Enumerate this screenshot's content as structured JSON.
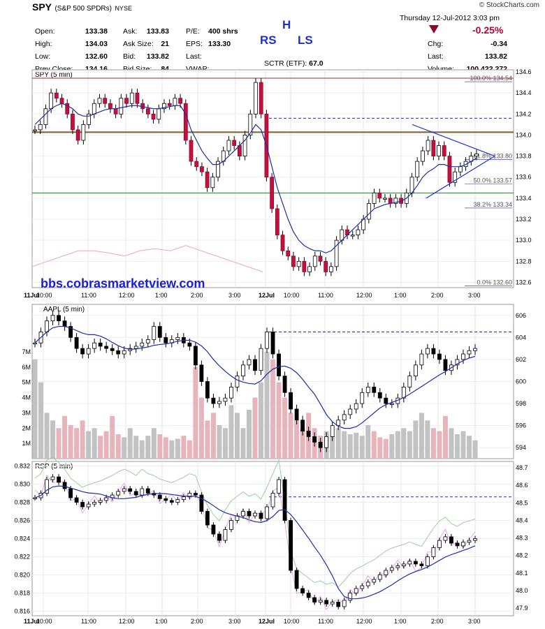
{
  "header": {
    "symbol": "SPY",
    "name": "(S&P 500 SPDRs)",
    "exchange": "NYSE",
    "credit": "© StockCharts.com",
    "date_line": "Thursday  12-Jul-2012  3:03 pm",
    "change_pct": "-0.25%",
    "quote_left": [
      {
        "label": "Open:",
        "value": "133.38"
      },
      {
        "label": "High:",
        "value": "134.03"
      },
      {
        "label": "Low:",
        "value": "132.60"
      },
      {
        "label": "Prev Close:",
        "value": "134.16"
      }
    ],
    "quote_mid": [
      {
        "label": "Ask:",
        "value": "133.83"
      },
      {
        "label": "Ask Size:",
        "value": "21"
      },
      {
        "label": "Bid:",
        "value": "133.82"
      },
      {
        "label": "Bid Size:",
        "value": "84"
      }
    ],
    "quote_misc": [
      {
        "label": "P/E:",
        "value": ""
      },
      {
        "label": "EPS:",
        "value": ""
      },
      {
        "label": "Last:",
        "value": "400 shrs"
      },
      {
        "label": "VWAP:",
        "value": "133.30"
      }
    ],
    "sctr": "SCTR (ETF):",
    "sctr_value": "67.0",
    "quote_right": [
      {
        "label": "Chg:",
        "value": "-0.34"
      },
      {
        "label": "Last:",
        "value": "133.82"
      },
      {
        "label": "Volume:",
        "value": "100,422,272"
      }
    ],
    "annotation_h": "H",
    "annotation_rs": "RS",
    "annotation_ls": "LS"
  },
  "watermark": "bbs.cobrasmarketview.com",
  "chart_data": [
    {
      "type": "line",
      "panel": "SPY (5 min)",
      "ylim": [
        132.6,
        134.6
      ],
      "yticks": [
        "134.6",
        "134.4",
        "134.2",
        "134.0",
        "133.8",
        "133.6",
        "133.4",
        "133.2",
        "133.0",
        "132.8",
        "132.6"
      ],
      "xticks": [
        "11Jul",
        "10:00",
        "11:00",
        "12:00",
        "1:00",
        "2:00",
        "3:00",
        "12Jul",
        "10:00",
        "11:00",
        "12:00",
        "1:00",
        "2:00",
        "3:00"
      ],
      "fib_labels": [
        "100.0%",
        "134.54",
        "61.8%",
        "133.80",
        "50.0%",
        "133.57",
        "38.2%",
        "133.34",
        "0.0%",
        "132.60"
      ],
      "fib_levels": [
        134.54,
        133.8,
        133.57,
        133.34,
        132.6
      ],
      "red_lines": [
        134.54,
        134.03
      ],
      "green_lines": [
        134.03,
        133.45
      ],
      "dashed_blue": 134.16,
      "series": [
        {
          "name": "",
          "values": [
            134.05,
            134.1,
            134.25,
            134.4,
            134.35,
            134.3,
            134.2,
            134.05,
            133.95,
            134.1,
            134.2,
            134.3,
            134.35,
            134.3,
            134.25,
            134.2,
            134.35,
            134.3,
            134.4,
            134.3,
            134.25,
            134.2,
            134.15,
            134.25,
            134.3,
            134.28,
            134.35,
            134.3,
            133.95,
            133.75,
            133.7,
            133.65,
            133.5,
            133.6,
            133.75,
            133.85,
            133.95,
            133.9,
            133.8,
            134.0,
            134.2,
            134.5,
            134.2,
            133.6,
            133.3,
            133.05,
            132.9,
            132.85,
            132.75,
            132.8,
            132.7,
            132.75,
            132.85,
            132.8,
            132.7,
            132.75,
            133.0,
            133.1,
            133.05,
            133.05,
            133.1,
            133.2,
            133.35,
            133.45,
            133.4,
            133.4,
            133.35,
            133.4,
            133.35,
            133.45,
            133.6,
            133.75,
            133.85,
            133.95,
            133.8,
            133.9,
            133.8,
            133.55,
            133.65,
            133.7,
            133.75,
            133.8,
            133.82
          ]
        },
        {
          "name": "",
          "values": [
            134.1,
            134.15,
            134.2,
            134.25,
            134.28,
            134.3,
            134.28,
            134.25,
            134.2,
            134.18,
            134.18,
            134.2,
            134.22,
            134.24,
            134.25,
            134.25,
            134.26,
            134.27,
            134.28,
            134.28,
            134.27,
            134.26,
            134.25,
            134.25,
            134.26,
            134.27,
            134.28,
            134.28,
            134.2,
            134.05,
            133.95,
            133.85,
            133.78,
            133.72,
            133.72,
            133.75,
            133.8,
            133.85,
            133.9,
            133.95,
            134.02,
            134.1,
            134.05,
            133.9,
            133.7,
            133.5,
            133.35,
            133.2,
            133.08,
            133.0,
            132.95,
            132.92,
            132.9,
            132.9,
            132.88,
            132.9,
            132.95,
            133.0,
            133.05,
            133.1,
            133.15,
            133.2,
            133.25,
            133.3,
            133.32,
            133.34,
            133.35,
            133.36,
            133.37,
            133.4,
            133.45,
            133.52,
            133.6,
            133.65,
            133.68,
            133.72,
            133.72,
            133.7,
            133.7,
            133.7,
            133.72,
            133.75,
            133.78
          ]
        }
      ]
    },
    {
      "type": "line",
      "panel": "AAPL (5 min)",
      "ylim": [
        593,
        607
      ],
      "yticks": [
        "606",
        "604",
        "602",
        "600",
        "598",
        "596",
        "594"
      ],
      "volume_ticks": [
        "7M",
        "6M",
        "5M",
        "4M",
        "3M",
        "2M",
        "1M"
      ],
      "dashed_blue": 604.5,
      "series": [
        {
          "name": "",
          "values": [
            603.5,
            604.5,
            605.5,
            606.0,
            605.5,
            605.0,
            604.0,
            603.0,
            602.5,
            603.0,
            603.5,
            603.2,
            603.0,
            602.8,
            602.5,
            602.8,
            603.0,
            603.2,
            603.5,
            603.8,
            605.0,
            604.0,
            603.5,
            603.8,
            604.0,
            603.5,
            603.2,
            601.5,
            600.0,
            598.5,
            598.0,
            598.2,
            598.5,
            599.5,
            600.5,
            601.5,
            602.0,
            601.0,
            603.0,
            604.5,
            602.5,
            600.5,
            599.0,
            597.5,
            596.5,
            595.5,
            595.0,
            594.5,
            594.0,
            595.0,
            596.0,
            596.5,
            597.0,
            597.5,
            598.0,
            599.0,
            599.5,
            599.0,
            598.5,
            598.0,
            598.0,
            598.5,
            599.5,
            600.5,
            601.5,
            602.5,
            603.0,
            602.5,
            602.0,
            601.0,
            601.5,
            602.0,
            602.5,
            602.8,
            603.0
          ]
        }
      ],
      "volume": [
        6.5,
        5.0,
        3.0,
        2.5,
        2.0,
        2.8,
        2.2,
        2.0,
        2.5,
        1.8,
        2.0,
        1.5,
        1.8,
        2.8,
        1.6,
        1.4,
        2.0,
        1.5,
        1.2,
        1.5,
        2.0,
        1.6,
        1.4,
        1.2,
        1.3,
        1.5,
        1.2,
        6.0,
        4.0,
        2.5,
        3.0,
        2.2,
        2.0,
        3.5,
        3.0,
        2.0,
        3.2,
        4.0,
        5.0,
        7.0,
        6.5,
        5.0,
        4.0,
        3.0,
        2.5,
        2.0,
        3.0,
        2.0,
        1.5,
        1.8,
        1.5,
        2.0,
        1.8,
        1.6,
        1.7,
        1.5,
        2.2,
        1.8,
        1.4,
        1.3,
        1.6,
        1.8,
        2.0,
        1.8,
        2.5,
        3.0,
        2.5,
        2.0,
        1.8,
        2.8,
        2.0,
        1.6,
        1.8,
        1.5,
        1.2
      ]
    },
    {
      "type": "line",
      "panel": "RSP (5 min)",
      "ylim": [
        0.8155,
        0.8325
      ],
      "yticks": [
        "0.832",
        "0.830",
        "0.828",
        "0.826",
        "0.824",
        "0.822",
        "0.820",
        "0.818",
        "0.816"
      ],
      "yticks_right": [
        "48.7",
        "48.6",
        "48.5",
        "48.4",
        "48.3",
        "48.2",
        "48.1",
        "48.0",
        "47.9"
      ],
      "dashed_blue": 0.8286,
      "series": [
        {
          "name": "",
          "values": [
            0.8285,
            0.829,
            0.8305,
            0.8308,
            0.8302,
            0.8295,
            0.8285,
            0.828,
            0.8275,
            0.8278,
            0.828,
            0.8282,
            0.8285,
            0.8288,
            0.8292,
            0.8295,
            0.8292,
            0.8288,
            0.8295,
            0.829,
            0.8288,
            0.8284,
            0.8282,
            0.828,
            0.8283,
            0.8286,
            0.829,
            0.8288,
            0.827,
            0.8255,
            0.8245,
            0.8238,
            0.825,
            0.826,
            0.8265,
            0.827,
            0.8265,
            0.8268,
            0.8262,
            0.8275,
            0.829,
            0.8305,
            0.826,
            0.8205,
            0.8185,
            0.818,
            0.8175,
            0.817,
            0.8172,
            0.8168,
            0.817,
            0.8165,
            0.8172,
            0.818,
            0.8185,
            0.8188,
            0.8192,
            0.8195,
            0.82,
            0.8205,
            0.8208,
            0.821,
            0.8212,
            0.8215,
            0.8212,
            0.821,
            0.822,
            0.823,
            0.8238,
            0.8242,
            0.8235,
            0.8232,
            0.8236,
            0.8238,
            0.824
          ]
        }
      ]
    }
  ]
}
